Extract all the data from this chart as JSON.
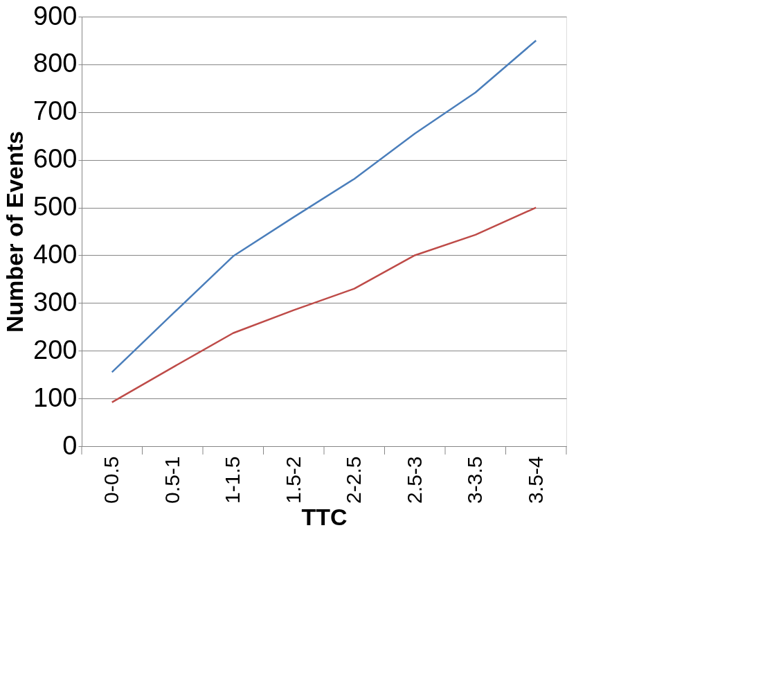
{
  "chart_data": {
    "type": "line",
    "xlabel": "TTC",
    "ylabel": "Number of Events",
    "categories": [
      "0-0.5",
      "0.5-1",
      "1-1.5",
      "1.5-2",
      "2-2.5",
      "2.5-3",
      "3-3.5",
      "3.5-4"
    ],
    "series": [
      {
        "color": "#4a7ebb",
        "values": [
          155,
          277,
          398,
          480,
          560,
          655,
          741,
          850
        ]
      },
      {
        "color": "#be4b48",
        "values": [
          92,
          165,
          237,
          285,
          330,
          400,
          443,
          500
        ]
      }
    ],
    "ylim": [
      0,
      900
    ],
    "yticks": [
      0,
      100,
      200,
      300,
      400,
      500,
      600,
      700,
      800,
      900
    ],
    "grid": "y",
    "legend": false,
    "marker": "none",
    "line_style": "solid"
  }
}
